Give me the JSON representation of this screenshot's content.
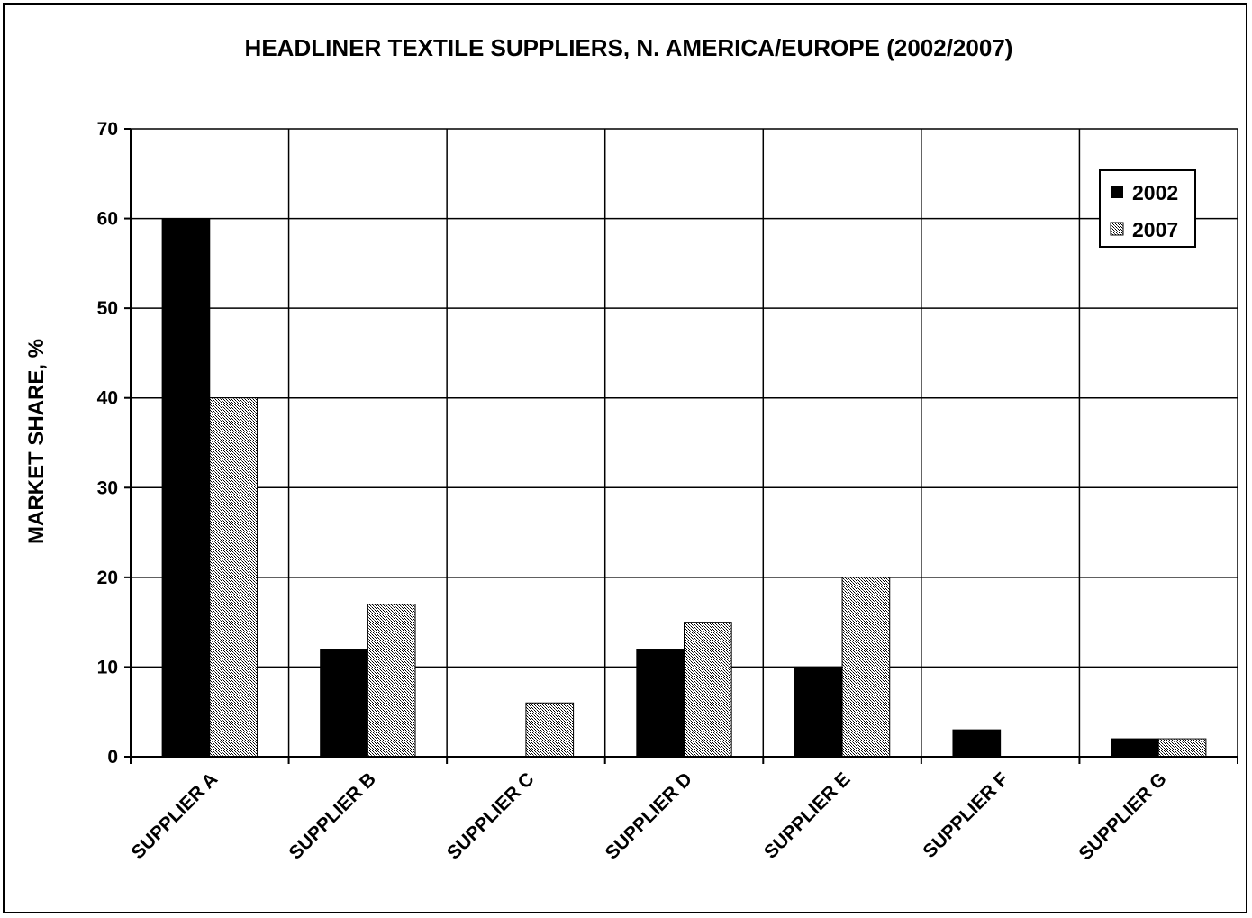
{
  "chart_data": {
    "type": "bar",
    "title": "HEADLINER TEXTILE SUPPLIERS, N. AMERICA/EUROPE (2002/2007)",
    "xlabel": "",
    "ylabel": "MARKET SHARE, %",
    "ylim": [
      0,
      70
    ],
    "yticks": [
      "0",
      "10",
      "20",
      "30",
      "40",
      "50",
      "60",
      "70"
    ],
    "grid": true,
    "legend_position": "top-right",
    "categories": [
      "SUPPLIER A",
      "SUPPLIER B",
      "SUPPLIER C",
      "SUPPLIER D",
      "SUPPLIER E",
      "SUPPLIER F",
      "SUPPLIER G"
    ],
    "series": [
      {
        "name": "2002",
        "color": "#000000",
        "pattern": "solid",
        "values": [
          60,
          12,
          0,
          12,
          10,
          3,
          2
        ]
      },
      {
        "name": "2007",
        "color": "#c8c8c8",
        "pattern": "hatched",
        "values": [
          40,
          17,
          6,
          15,
          20,
          0,
          2
        ]
      }
    ]
  }
}
